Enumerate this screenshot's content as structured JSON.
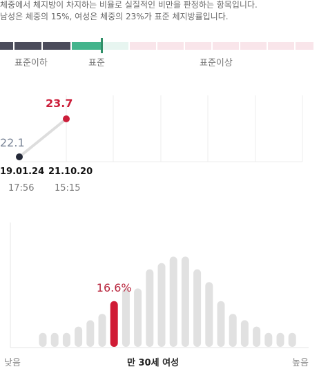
{
  "description": {
    "line1": "체중에서 체지방이 차지하는 비율로 실질적인 비만을 판정하는 항목입니다.",
    "line2": "남성은 체중의 15%, 여성은 체중의 23%가 표준 체지방률입니다."
  },
  "gauge": {
    "labels": {
      "below": "표준이하",
      "standard": "표준",
      "above": "표준이상"
    },
    "colors": {
      "below": "#4b4c5b",
      "standard": "#43b48c",
      "standard_light": "#e7f5f0",
      "above": "#f9e5ea",
      "marker": "#2f8f67"
    }
  },
  "history": {
    "points": [
      {
        "value": "22.1",
        "date": "19.01.24",
        "time": "17:56",
        "color": "#7a8597"
      },
      {
        "value": "23.7",
        "date": "21.10.20",
        "time": "15:15",
        "color": "#cc1e3a"
      }
    ]
  },
  "chart_data": {
    "type": "bar",
    "series": [
      {
        "values": [
          1,
          1,
          1,
          2,
          3,
          4,
          6,
          8,
          8,
          11,
          12,
          13,
          13,
          11,
          9,
          6,
          4,
          3,
          2,
          1,
          1,
          1
        ]
      }
    ],
    "highlight_index": 6,
    "highlight_label": "16.6%",
    "xlabel_left": "낮음",
    "xlabel_center": "만 30세 여성",
    "xlabel_right": "높음",
    "colors": {
      "bar": "#e1e1e1",
      "highlight": "#d01b35",
      "highlight_text": "#b8243c"
    }
  }
}
